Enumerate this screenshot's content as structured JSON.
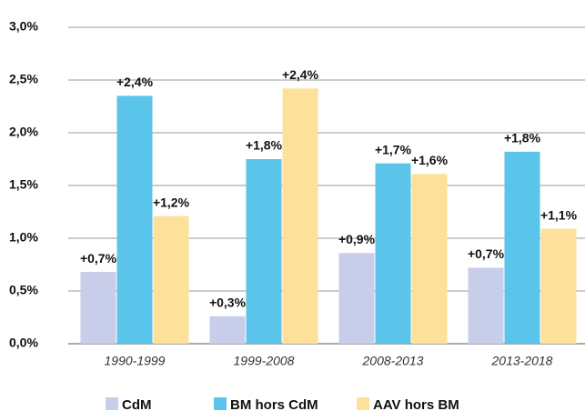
{
  "chart_data": {
    "type": "bar",
    "categories": [
      "1990-1999",
      "1999-2008",
      "2008-2013",
      "2013-2018"
    ],
    "series": [
      {
        "name": "CdM",
        "color": "#c8cdea",
        "values": [
          0.68,
          0.26,
          0.86,
          0.72
        ],
        "value_labels": [
          "+0,7%",
          "+0,3%",
          "+0,9%",
          "+0,7%"
        ]
      },
      {
        "name": "BM hors CdM",
        "color": "#5bc4ea",
        "values": [
          2.35,
          1.75,
          1.71,
          1.82
        ],
        "value_labels": [
          "+2,4%",
          "+1,8%",
          "+1,7%",
          "+1,8%"
        ]
      },
      {
        "name": "AAV hors BM",
        "color": "#fde19a",
        "values": [
          1.21,
          2.42,
          1.61,
          1.09
        ],
        "value_labels": [
          "+1,2%",
          "+2,4%",
          "+1,6%",
          "+1,1%"
        ]
      }
    ],
    "ylim": [
      0,
      3
    ],
    "yticks": [
      {
        "value": 0,
        "label": "0,0%"
      },
      {
        "value": 0.5,
        "label": "0,5%"
      },
      {
        "value": 1,
        "label": "1,0%"
      },
      {
        "value": 1.5,
        "label": "1,5%"
      },
      {
        "value": 2,
        "label": "2,0%"
      },
      {
        "value": 2.5,
        "label": "2,5%"
      },
      {
        "value": 3,
        "label": "3,0%"
      }
    ],
    "grid": true
  }
}
